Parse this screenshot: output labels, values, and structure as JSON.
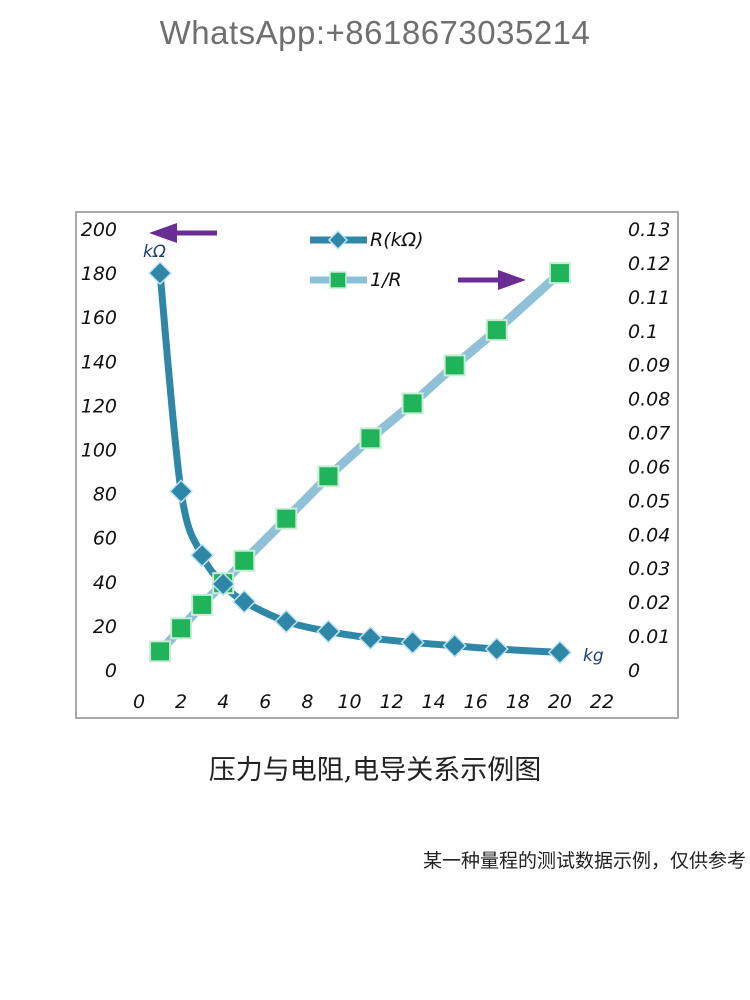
{
  "watermark": "WhatsApp:+8618673035214",
  "caption": "压力与电阻,电导关系示例图",
  "note": "某一种量程的测试数据示例，仅供参考",
  "chart_data": {
    "type": "line",
    "x_unit": "kg",
    "y_left_unit": "kΩ",
    "x_ticks": [
      "0",
      "2",
      "4",
      "6",
      "8",
      "10",
      "12",
      "14",
      "16",
      "18",
      "20",
      "22"
    ],
    "y_left_ticks": [
      "0",
      "20",
      "40",
      "60",
      "80",
      "100",
      "120",
      "140",
      "160",
      "180",
      "200"
    ],
    "y_right_ticks": [
      "0",
      "0.01",
      "0.02",
      "0.03",
      "0.04",
      "0.05",
      "0.06",
      "0.07",
      "0.08",
      "0.09",
      "0.1",
      "0.11",
      "0.12",
      "0.13"
    ],
    "xlim": [
      0,
      22
    ],
    "y_left_lim": [
      0,
      200
    ],
    "y_right_lim": [
      0,
      0.13
    ],
    "legend_position": "top-center",
    "grid": false,
    "series": [
      {
        "name": "R(kΩ)",
        "axis": "left",
        "marker": "diamond",
        "color": "#2f87a8",
        "x": [
          1,
          2,
          3,
          4,
          5,
          7,
          9,
          11,
          13,
          15,
          17,
          20
        ],
        "values": [
          180,
          81,
          52,
          39,
          31,
          22,
          17.5,
          14.5,
          12.5,
          11,
          9.5,
          8
        ]
      },
      {
        "name": "1/R",
        "axis": "right",
        "marker": "square",
        "color": "#8ec1d8",
        "marker_color": "#1fb35a",
        "x": [
          1,
          2,
          3,
          4,
          5,
          7,
          9,
          11,
          13,
          15,
          17,
          20
        ],
        "values": [
          0.0055,
          0.0123,
          0.0192,
          0.0256,
          0.0322,
          0.0446,
          0.0571,
          0.0683,
          0.0786,
          0.0898,
          0.1002,
          0.117
        ]
      }
    ]
  },
  "colors": {
    "arrow": "#6a2d96",
    "axis_unit_text": "#1f3f7a"
  }
}
